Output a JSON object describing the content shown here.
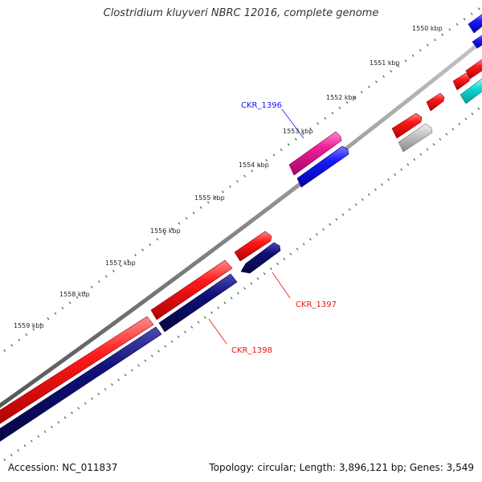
{
  "title": "Clostridium kluyveri NBRC 12016, complete genome",
  "footer": {
    "accession": "Accession: NC_011837",
    "summary": "Topology: circular; Length: 3,896,121 bp; Genes: 3,549"
  },
  "scale_labels": [
    "1550 kbp",
    "1551 kbp",
    "1552 kbp",
    "1553 kbp",
    "1554 kbp",
    "1555 kbp",
    "1556 kbp",
    "1557 kbp",
    "1558 kbp",
    "1559 kbp"
  ],
  "gene_labels": {
    "ckr1396": "CKR_1396",
    "ckr1397": "CKR_1397",
    "ckr1398": "CKR_1398"
  },
  "colors": {
    "backbone": "#8a8a8a",
    "ticks": "#1e7a1e",
    "red": "#ee1111",
    "navy": "#0a0a7a",
    "blue": "#1515ee",
    "pink": "#ee2299",
    "gray": "#bbbbbb",
    "cyan": "#11dddd"
  }
}
